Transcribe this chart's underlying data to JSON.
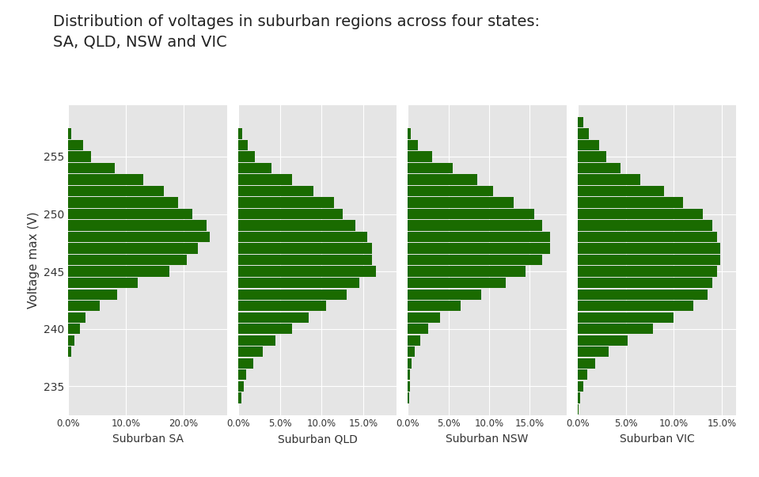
{
  "title": "Distribution of voltages in suburban regions across four states:\nSA, QLD, NSW and VIC",
  "ylabel": "Voltage max (V)",
  "bar_color": "#1a6b00",
  "bg_color": "#e5e5e5",
  "subplots": [
    {
      "xlabel": "Suburban SA",
      "xlim": [
        0,
        0.275
      ],
      "xticks": [
        0.0,
        0.1,
        0.2
      ],
      "xticklabels": [
        "0.0%",
        "10.0%",
        "20.0%"
      ],
      "voltages": [
        257,
        256,
        255,
        254,
        253,
        252,
        251,
        250,
        249,
        248,
        247,
        246,
        245,
        244,
        243,
        242,
        241,
        240,
        239,
        238
      ],
      "values": [
        0.005,
        0.025,
        0.04,
        0.08,
        0.13,
        0.165,
        0.19,
        0.215,
        0.24,
        0.245,
        0.225,
        0.205,
        0.175,
        0.12,
        0.085,
        0.055,
        0.03,
        0.02,
        0.01,
        0.005
      ]
    },
    {
      "xlabel": "Suburban QLD",
      "xlim": [
        0,
        0.19
      ],
      "xticks": [
        0.0,
        0.05,
        0.1,
        0.15
      ],
      "xticklabels": [
        "0.0%",
        "5.0%",
        "10.0%",
        "15.0%"
      ],
      "voltages": [
        257,
        256,
        255,
        254,
        253,
        252,
        251,
        250,
        249,
        248,
        247,
        246,
        245,
        244,
        243,
        242,
        241,
        240,
        239,
        238,
        237,
        236,
        235,
        234
      ],
      "values": [
        0.005,
        0.012,
        0.02,
        0.04,
        0.065,
        0.09,
        0.115,
        0.125,
        0.14,
        0.155,
        0.16,
        0.16,
        0.165,
        0.145,
        0.13,
        0.105,
        0.085,
        0.065,
        0.045,
        0.03,
        0.018,
        0.01,
        0.007,
        0.004
      ]
    },
    {
      "xlabel": "Suburban NSW",
      "xlim": [
        0,
        0.195
      ],
      "xticks": [
        0.0,
        0.05,
        0.1,
        0.15
      ],
      "xticklabels": [
        "0.0%",
        "5.0%",
        "10.0%",
        "15.0%"
      ],
      "voltages": [
        257,
        256,
        255,
        254,
        253,
        252,
        251,
        250,
        249,
        248,
        247,
        246,
        245,
        244,
        243,
        242,
        241,
        240,
        239,
        238,
        237,
        236,
        235,
        234
      ],
      "values": [
        0.004,
        0.012,
        0.03,
        0.055,
        0.085,
        0.105,
        0.13,
        0.155,
        0.165,
        0.175,
        0.175,
        0.165,
        0.145,
        0.12,
        0.09,
        0.065,
        0.04,
        0.025,
        0.015,
        0.008,
        0.005,
        0.003,
        0.003,
        0.002
      ]
    },
    {
      "xlabel": "Suburban VIC",
      "xlim": [
        0,
        0.165
      ],
      "xticks": [
        0.0,
        0.05,
        0.1,
        0.15
      ],
      "xticklabels": [
        "0.0%",
        "5.0%",
        "10.0%",
        "15.0%"
      ],
      "voltages": [
        258,
        257,
        256,
        255,
        254,
        253,
        252,
        251,
        250,
        249,
        248,
        247,
        246,
        245,
        244,
        243,
        242,
        241,
        240,
        239,
        238,
        237,
        236,
        235,
        234,
        233
      ],
      "values": [
        0.006,
        0.012,
        0.022,
        0.03,
        0.045,
        0.065,
        0.09,
        0.11,
        0.13,
        0.14,
        0.145,
        0.148,
        0.148,
        0.145,
        0.14,
        0.135,
        0.12,
        0.1,
        0.078,
        0.052,
        0.032,
        0.018,
        0.01,
        0.006,
        0.003,
        0.001
      ]
    }
  ],
  "yticks": [
    235,
    240,
    245,
    250,
    255
  ],
  "ylim": [
    232.5,
    259.5
  ],
  "title_fontsize": 14,
  "title_color": "#222222"
}
